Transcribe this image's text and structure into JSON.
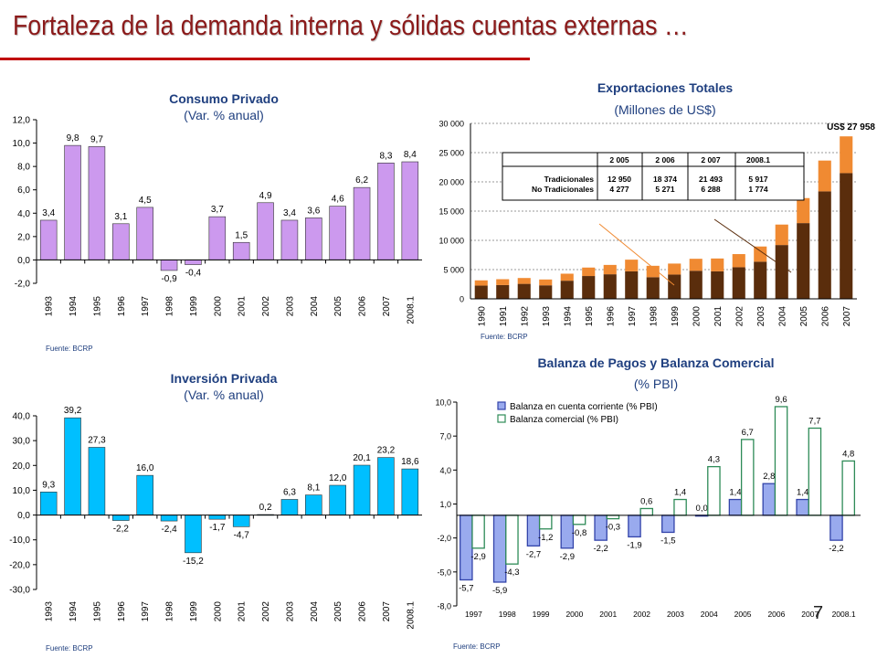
{
  "slide": {
    "title": "Fortaleza de la demanda interna y sólidas cuentas externas …",
    "number": "7",
    "colors": {
      "title": "#8B1A1A",
      "rule": "#C00000",
      "chart_title": "#1F3F7F"
    }
  },
  "chart_data": [
    {
      "id": "consumo",
      "type": "bar",
      "title": "Consumo Privado",
      "subtitle": "(Var. % anual)",
      "categories": [
        "1993",
        "1994",
        "1995",
        "1996",
        "1997",
        "1998",
        "1999",
        "2000",
        "2001",
        "2002",
        "2003",
        "2004",
        "2005",
        "2006",
        "2007",
        "2008.1"
      ],
      "values": [
        3.4,
        9.8,
        9.7,
        3.1,
        4.5,
        -0.9,
        -0.4,
        3.7,
        1.5,
        4.9,
        3.4,
        3.6,
        4.6,
        6.2,
        8.3,
        8.4
      ],
      "value_labels": [
        "3,4",
        "9,8",
        "9,7",
        "3,1",
        "4,5",
        "-0,9",
        "-0,4",
        "3,7",
        "1,5",
        "4,9",
        "3,4",
        "3,6",
        "4,6",
        "6,2",
        "8,3",
        "8,4"
      ],
      "y_ticks": [
        "12,0",
        "10,0",
        "8,0",
        "6,0",
        "4,0",
        "2,0",
        "0,0",
        "-2,0"
      ],
      "ylim": [
        -2,
        12
      ],
      "bar_color": "#CC99EE",
      "source": "Fuente: BCRP"
    },
    {
      "id": "exportaciones",
      "type": "bar",
      "stacked": true,
      "title": "Exportaciones Totales",
      "subtitle": "(Millones de US$)",
      "categories": [
        "1990",
        "1991",
        "1992",
        "1993",
        "1994",
        "1995",
        "1996",
        "1997",
        "1998",
        "1999",
        "2000",
        "2001",
        "2002",
        "2003",
        "2004",
        "2005",
        "2006",
        "2007"
      ],
      "series": [
        {
          "name": "Tradicionales",
          "color": "#5A2D0C",
          "values": [
            2260,
            2359,
            2562,
            2310,
            3100,
            3900,
            4200,
            4700,
            3700,
            4150,
            4800,
            4700,
            5400,
            6350,
            9200,
            12950,
            18374,
            21493
          ]
        },
        {
          "name": "No Tradicionales",
          "color": "#F08A32",
          "values": [
            900,
            1000,
            1000,
            1000,
            1200,
            1450,
            1600,
            2000,
            1950,
            1880,
            2050,
            2200,
            2250,
            2600,
            3500,
            4277,
            5271,
            6288
          ]
        }
      ],
      "y_ticks": [
        "30 000",
        "25 000",
        "20 000",
        "15 000",
        "10 000",
        "5 000",
        "0"
      ],
      "ylim": [
        0,
        30000
      ],
      "annotation": "US$ 27 958",
      "table": {
        "headers": [
          "2 005",
          "2 006",
          "2 007",
          "2008.1"
        ],
        "rows": [
          {
            "label": "Tradicionales",
            "values": [
              "12 950",
              "18 374",
              "21 493",
              "5 917"
            ]
          },
          {
            "label": "No Tradicionales",
            "values": [
              "4 277",
              "5 271",
              "6 288",
              "1 774"
            ]
          }
        ]
      },
      "source": "Fuente: BCRP"
    },
    {
      "id": "inversion",
      "type": "bar",
      "title": "Inversión Privada",
      "subtitle": "(Var. % anual)",
      "categories": [
        "1993",
        "1994",
        "1995",
        "1996",
        "1997",
        "1998",
        "1999",
        "2000",
        "2001",
        "2002",
        "2003",
        "2004",
        "2005",
        "2006",
        "2007",
        "2008.1"
      ],
      "values": [
        9.3,
        39.2,
        27.3,
        -2.2,
        16.0,
        -2.4,
        -15.2,
        -1.7,
        -4.7,
        0.2,
        6.3,
        8.1,
        12.0,
        20.1,
        23.2,
        18.6
      ],
      "value_labels": [
        "9,3",
        "39,2",
        "27,3",
        "-2,2",
        "16,0",
        "-2,4",
        "-15,2",
        "-1,7",
        "-4,7",
        "0,2",
        "6,3",
        "8,1",
        "12,0",
        "20,1",
        "23,2",
        "18,6"
      ],
      "y_ticks": [
        "40,0",
        "30,0",
        "20,0",
        "10,0",
        "0,0",
        "-10,0",
        "-20,0",
        "-30,0"
      ],
      "ylim": [
        -30,
        40
      ],
      "bar_color": "#00BFFF",
      "source": "Fuente: BCRP"
    },
    {
      "id": "balanza",
      "type": "bar",
      "title": "Balanza de Pagos y Balanza Comercial",
      "subtitle": "(% PBI)",
      "categories": [
        "1997",
        "1998",
        "1999",
        "2000",
        "2001",
        "2002",
        "2003",
        "2004",
        "2005",
        "2006",
        "2007",
        "2008.1"
      ],
      "series": [
        {
          "name": "Balanza en cuenta corriente (% PBI)",
          "color": "#99AAEE",
          "stroke": "#3344AA",
          "values": [
            -5.7,
            -5.9,
            -2.7,
            -2.9,
            -2.2,
            -1.9,
            -1.5,
            0.0,
            1.4,
            2.8,
            1.4,
            -2.2
          ],
          "value_labels": [
            "-5,7",
            "-5,9",
            "-2,7",
            "-2,9",
            "-2,2",
            "-1,9",
            "-1,5",
            "0,0",
            "1,4",
            "2,8",
            "1,4",
            "-2,2"
          ]
        },
        {
          "name": "Balanza comercial (% PBI)",
          "color": "#FFFFFF",
          "stroke": "#2E8B57",
          "values": [
            -2.9,
            -4.3,
            -1.2,
            -0.8,
            -0.3,
            0.6,
            1.4,
            4.3,
            6.7,
            9.6,
            7.7,
            4.8
          ],
          "value_labels": [
            "-2,9",
            "-4,3",
            "-1,2",
            "-0,8",
            "-0,3",
            "0,6",
            "1,4",
            "4,3",
            "6,7",
            "9,6",
            "7,7",
            "4,8"
          ]
        }
      ],
      "y_ticks": [
        "10,0",
        "7,0",
        "4,0",
        "1,0",
        "-2,0",
        "-5,0",
        "-8,0"
      ],
      "ylim": [
        -8,
        10
      ],
      "source": "Fuente: BCRP"
    }
  ]
}
